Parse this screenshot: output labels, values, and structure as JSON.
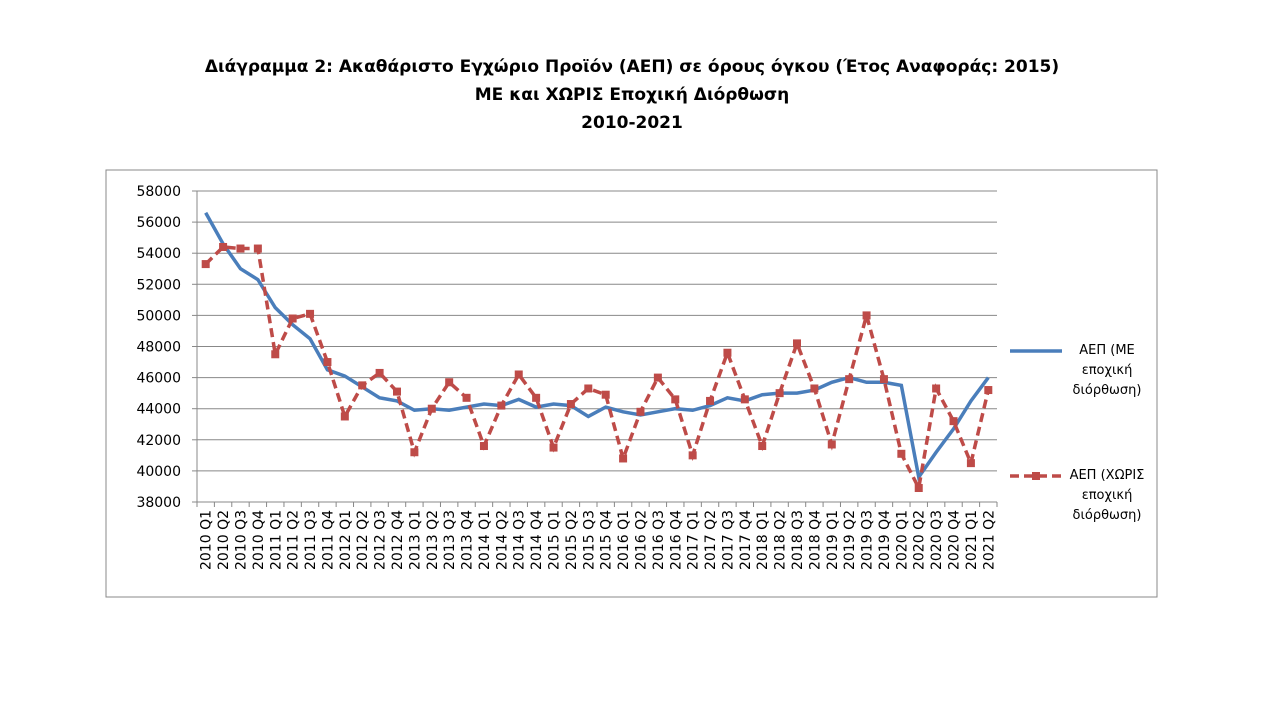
{
  "chart_data": {
    "type": "line",
    "title": [
      "Διάγραμμα 2: Ακαθάριστο Εγχώριο Προϊόν (ΑΕΠ) σε όρους όγκου (Έτος Αναφοράς: 2015)",
      "ΜΕ και ΧΩΡΙΣ Εποχική Διόρθωση",
      "2010-2021"
    ],
    "categories": [
      "2010 Q1",
      "2010 Q2",
      "2010 Q3",
      "2010 Q4",
      "2011 Q1",
      "2011 Q2",
      "2011 Q3",
      "2011 Q4",
      "2012 Q1",
      "2012 Q2",
      "2012 Q3",
      "2012 Q4",
      "2013 Q1",
      "2013 Q2",
      "2013 Q3",
      "2013 Q4",
      "2014 Q1",
      "2014 Q2",
      "2014 Q3",
      "2014 Q4",
      "2015 Q1",
      "2015 Q2",
      "2015 Q3",
      "2015 Q4",
      "2016 Q1",
      "2016 Q2",
      "2016 Q3",
      "2016 Q4",
      "2017 Q1",
      "2017 Q2",
      "2017 Q3",
      "2017 Q4",
      "2018 Q1",
      "2018 Q2",
      "2018 Q3",
      "2018 Q4",
      "2019 Q1",
      "2019 Q2",
      "2019 Q3",
      "2019 Q4",
      "2020 Q1",
      "2020 Q2",
      "2020 Q3",
      "2020 Q4",
      "2021 Q1",
      "2021 Q2"
    ],
    "series": [
      {
        "name": "ΑΕΠ (ΜΕ εποχική διόρθωση)",
        "color": "#4a7ebb",
        "dashed": false,
        "markers": false,
        "values": [
          56600,
          54600,
          53000,
          52300,
          50500,
          49400,
          48500,
          46500,
          46100,
          45400,
          44700,
          44500,
          43900,
          44000,
          43900,
          44100,
          44300,
          44200,
          44600,
          44100,
          44300,
          44200,
          43500,
          44100,
          43800,
          43600,
          43800,
          44000,
          43900,
          44200,
          44700,
          44500,
          44900,
          45000,
          45000,
          45200,
          45700,
          46000,
          45700,
          45700,
          45500,
          39600,
          41200,
          42700,
          44500,
          46000
        ]
      },
      {
        "name": "ΑΕΠ (ΧΩΡΙΣ εποχική διόρθωση)",
        "color": "#be4b48",
        "dashed": true,
        "markers": true,
        "values": [
          53300,
          54400,
          54300,
          54300,
          47500,
          49800,
          50100,
          47000,
          43500,
          45500,
          46300,
          45100,
          41200,
          44000,
          45700,
          44700,
          41600,
          44200,
          46200,
          44700,
          41500,
          44300,
          45300,
          44900,
          40800,
          43800,
          46000,
          44600,
          41000,
          44500,
          47600,
          44600,
          41600,
          45000,
          48200,
          45300,
          41700,
          45900,
          50000,
          45900,
          41100,
          38900,
          45300,
          43200,
          40500,
          45200
        ]
      }
    ],
    "ylim": [
      38000,
      58000
    ],
    "yticks": [
      38000,
      40000,
      42000,
      44000,
      46000,
      48000,
      50000,
      52000,
      54000,
      56000,
      58000
    ],
    "grid": true
  }
}
